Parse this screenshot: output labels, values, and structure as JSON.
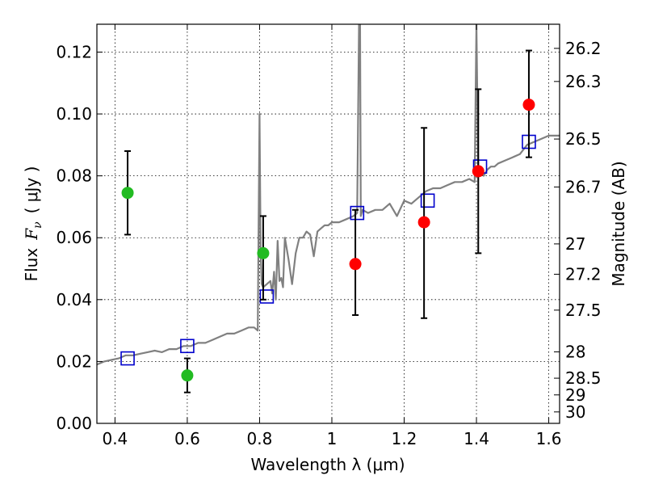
{
  "chart_data": {
    "type": "scatter",
    "title": "",
    "xlabel": "Wavelength  λ (μm)",
    "ylabel": "Flux  F_ν  ( μJy )",
    "ylabel_parts": {
      "prefix": "Flux",
      "symbol": "F",
      "subscript": "ν",
      "unit": "( μJy )"
    },
    "ylabel_right": "Magnitude (AB)",
    "xlim": [
      0.35,
      1.63
    ],
    "ylim": [
      0.0,
      0.129
    ],
    "grid": true,
    "grid_style": "dotted",
    "legend": "none",
    "x_ticks": [
      0.4,
      0.6,
      0.8,
      1.0,
      1.2,
      1.4,
      1.6
    ],
    "x_tick_labels": [
      "0.4",
      "0.6",
      "0.8",
      "1",
      "1.2",
      "1.4",
      "1.6"
    ],
    "y_ticks": [
      0.0,
      0.02,
      0.04,
      0.06,
      0.08,
      0.1,
      0.12
    ],
    "y_tick_labels": [
      "0.00",
      "0.02",
      "0.04",
      "0.06",
      "0.08",
      "0.10",
      "0.12"
    ],
    "right_ticks": [
      {
        "label": "26.2",
        "flux": 0.1212
      },
      {
        "label": "26.3",
        "flux": 0.1105
      },
      {
        "label": "26.5",
        "flux": 0.0919
      },
      {
        "label": "26.7",
        "flux": 0.0764
      },
      {
        "label": "27",
        "flux": 0.058
      },
      {
        "label": "27.2",
        "flux": 0.0482
      },
      {
        "label": "27.5",
        "flux": 0.0366
      },
      {
        "label": "28",
        "flux": 0.0231
      },
      {
        "label": "28.5",
        "flux": 0.0146
      },
      {
        "label": "29",
        "flux": 0.0092
      },
      {
        "label": "30",
        "flux": 0.0037
      }
    ],
    "colors": {
      "sed": "#808080",
      "model_box": "#0000cc",
      "green_point": "#22bb22",
      "red_point": "#ff0000",
      "errorbar": "#000000",
      "grid": "#000000"
    },
    "series": [
      {
        "kind": "line",
        "color": "#808080",
        "x": [
          0.35,
          0.37,
          0.39,
          0.41,
          0.43,
          0.45,
          0.47,
          0.49,
          0.51,
          0.53,
          0.55,
          0.57,
          0.59,
          0.61,
          0.63,
          0.65,
          0.67,
          0.69,
          0.71,
          0.73,
          0.75,
          0.77,
          0.785,
          0.795,
          0.8,
          0.803,
          0.806,
          0.81,
          0.82,
          0.83,
          0.835,
          0.84,
          0.845,
          0.85,
          0.855,
          0.86,
          0.865,
          0.87,
          0.88,
          0.89,
          0.9,
          0.91,
          0.92,
          0.93,
          0.94,
          0.95,
          0.96,
          0.97,
          0.98,
          0.99,
          1.0,
          1.02,
          1.04,
          1.06,
          1.07,
          1.075,
          1.078,
          1.08,
          1.085,
          1.1,
          1.12,
          1.14,
          1.16,
          1.18,
          1.2,
          1.22,
          1.24,
          1.26,
          1.28,
          1.3,
          1.32,
          1.34,
          1.36,
          1.38,
          1.395,
          1.4,
          1.405,
          1.41,
          1.415,
          1.42,
          1.43,
          1.44,
          1.45,
          1.46,
          1.48,
          1.5,
          1.52,
          1.54,
          1.56,
          1.58,
          1.6,
          1.63
        ],
        "y": [
          0.019,
          0.02,
          0.0205,
          0.021,
          0.022,
          0.022,
          0.0225,
          0.023,
          0.0235,
          0.023,
          0.024,
          0.024,
          0.025,
          0.025,
          0.026,
          0.026,
          0.027,
          0.028,
          0.029,
          0.029,
          0.03,
          0.031,
          0.031,
          0.03,
          0.1,
          0.055,
          0.045,
          0.044,
          0.045,
          0.046,
          0.042,
          0.049,
          0.04,
          0.059,
          0.046,
          0.047,
          0.044,
          0.06,
          0.053,
          0.045,
          0.055,
          0.06,
          0.06,
          0.062,
          0.061,
          0.054,
          0.062,
          0.063,
          0.064,
          0.064,
          0.065,
          0.065,
          0.066,
          0.067,
          0.068,
          0.129,
          0.129,
          0.067,
          0.069,
          0.068,
          0.069,
          0.069,
          0.071,
          0.067,
          0.072,
          0.071,
          0.073,
          0.075,
          0.076,
          0.076,
          0.077,
          0.078,
          0.078,
          0.079,
          0.078,
          0.129,
          0.08,
          0.081,
          0.081,
          0.08,
          0.082,
          0.083,
          0.083,
          0.084,
          0.085,
          0.086,
          0.087,
          0.09,
          0.091,
          0.092,
          0.093,
          0.093
        ]
      },
      {
        "kind": "model_squares",
        "color": "#0000cc",
        "x": [
          0.435,
          0.6,
          0.82,
          1.07,
          1.265,
          1.41,
          1.545
        ],
        "y": [
          0.021,
          0.025,
          0.041,
          0.068,
          0.072,
          0.083,
          0.091
        ]
      },
      {
        "kind": "points",
        "color": "#22bb22",
        "x": [
          0.435,
          0.6,
          0.81
        ],
        "y": [
          0.0745,
          0.0155,
          0.055
        ],
        "yerr_low": [
          0.061,
          0.01,
          0.04
        ],
        "yerr_high": [
          0.088,
          0.021,
          0.067
        ]
      },
      {
        "kind": "points",
        "color": "#ff0000",
        "x": [
          1.065,
          1.255,
          1.405,
          1.545
        ],
        "y": [
          0.0515,
          0.065,
          0.0815,
          0.103
        ],
        "yerr_low": [
          0.035,
          0.034,
          0.055,
          0.086
        ],
        "yerr_high": [
          0.069,
          0.0955,
          0.108,
          0.1205
        ]
      }
    ]
  }
}
